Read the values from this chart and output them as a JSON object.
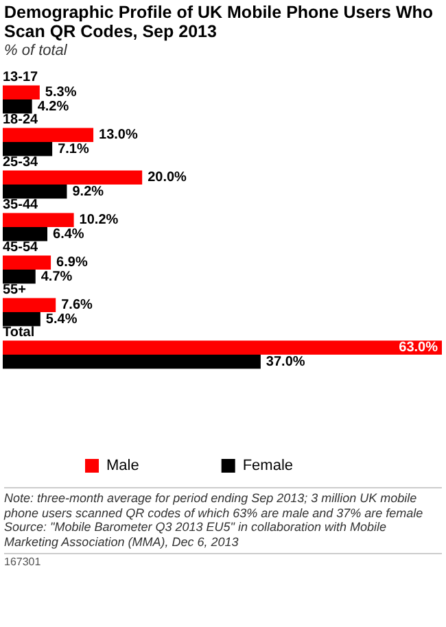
{
  "chart_data": {
    "type": "bar",
    "orientation": "horizontal",
    "title": "Demographic Profile of UK Mobile Phone Users Who Scan QR Codes, Sep 2013",
    "subtitle": "% of total",
    "categories": [
      "13-17",
      "18-24",
      "25-34",
      "35-44",
      "45-54",
      "55+",
      "Total"
    ],
    "series": [
      {
        "name": "Male",
        "color": "#ff0000",
        "values": [
          5.3,
          13.0,
          20.0,
          10.2,
          6.9,
          7.6,
          63.0
        ],
        "value_labels": [
          "5.3%",
          "13.0%",
          "20.0%",
          "10.2%",
          "6.9%",
          "7.6%",
          "63.0%"
        ]
      },
      {
        "name": "Female",
        "color": "#000000",
        "values": [
          4.2,
          7.1,
          9.2,
          6.4,
          4.7,
          5.4,
          37.0
        ],
        "value_labels": [
          "4.2%",
          "7.1%",
          "9.2%",
          "6.4%",
          "4.7%",
          "5.4%",
          "37.0%"
        ]
      }
    ],
    "legend": "bottom",
    "annotations": [
      "Note: three-month average for period ending Sep 2013; 3 million UK mobile phone users scanned QR codes of which 63% are male and 37% are female",
      "Source: \"Mobile Barometer Q3 2013 EU5\" in collaboration with Mobile Marketing Association (MMA), Dec 6, 2013",
      "167301"
    ]
  }
}
